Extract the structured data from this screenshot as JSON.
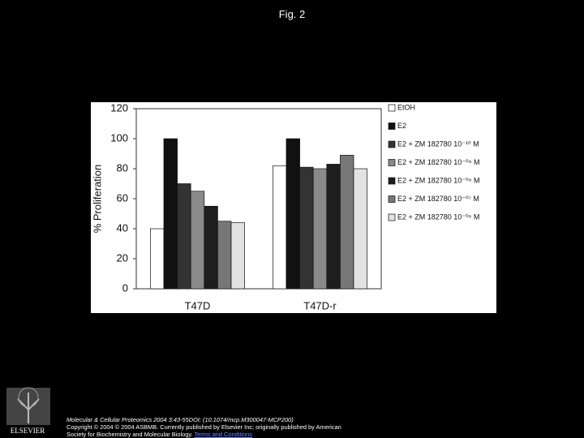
{
  "title": "Fig. 2",
  "chart_data": {
    "type": "bar",
    "ylabel": "% Proliferation",
    "categories": [
      "T47D",
      "T47D-r"
    ],
    "series": [
      {
        "name": "EtOH",
        "color": "#ffffff",
        "values": [
          40,
          82
        ]
      },
      {
        "name": "E2",
        "color": "#111111",
        "values": [
          100,
          100
        ]
      },
      {
        "name": "E2 + ZM 182780 10⁻¹⁰ M",
        "color": "#333333",
        "values": [
          70,
          81
        ]
      },
      {
        "name": "E2 + ZM 182780 10⁻⁰⁹ M",
        "color": "#8a8a8a",
        "values": [
          65,
          80
        ]
      },
      {
        "name": "E2 + ZM 182780 10⁻⁰⁸ M",
        "color": "#1e1e1e",
        "values": [
          55,
          83
        ]
      },
      {
        "name": "E2 + ZM 182780 10⁻⁰⁷ M",
        "color": "#777777",
        "values": [
          45,
          89
        ]
      },
      {
        "name": "E2 + ZM 182780 10⁻⁰⁶ M",
        "color": "#e2e2e2",
        "values": [
          44,
          80
        ]
      }
    ],
    "ylim": [
      0,
      120
    ],
    "yticks": [
      0,
      20,
      40,
      60,
      80,
      100,
      120
    ],
    "grid": false,
    "legend": "right"
  },
  "footer": {
    "logo_text": "ELSEVIER",
    "lines": [
      "Molecular & Cellular Proteomics 2004 3:43-55DOI: (10.1074/mcp.M300047-MCP200)",
      "Copyright © 2004 © 2004 ASBMB. Currently published by Elsevier Inc; originally published by American",
      "Society for Biochemistry and Molecular Biology."
    ],
    "link": "Terms and Conditions"
  }
}
